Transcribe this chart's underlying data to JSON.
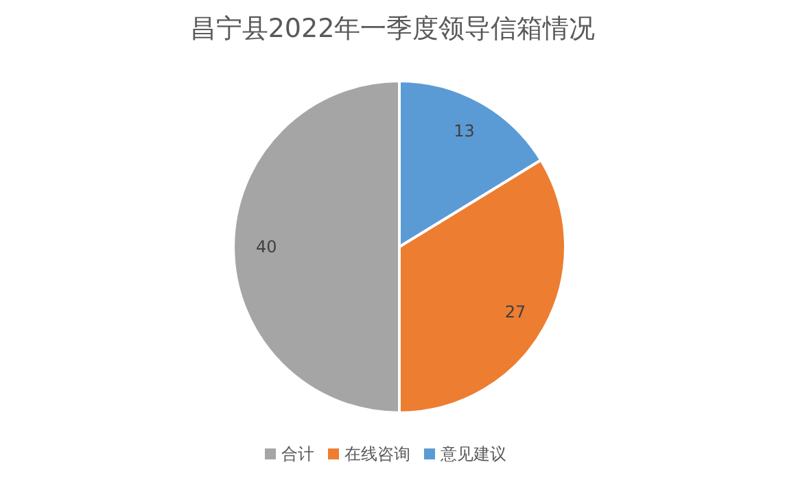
{
  "chart_data": {
    "type": "pie",
    "title": "昌宁县2022年一季度领导信箱情况",
    "categories": [
      "意见建议",
      "在线咨询",
      "合计"
    ],
    "values": [
      13,
      27,
      40
    ],
    "colors": [
      "#5b9bd5",
      "#ed7d31",
      "#a5a5a5"
    ],
    "data_labels": true,
    "legend": "bottom"
  }
}
